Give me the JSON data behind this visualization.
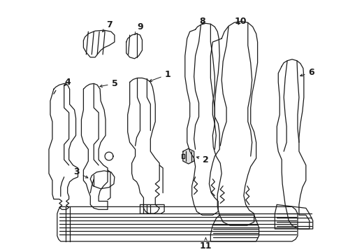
{
  "bg_color": "#ffffff",
  "line_color": "#1a1a1a",
  "lw": 0.9,
  "fig_w": 4.89,
  "fig_h": 3.6,
  "dpi": 100,
  "xlim": [
    0,
    489
  ],
  "ylim": [
    0,
    360
  ]
}
